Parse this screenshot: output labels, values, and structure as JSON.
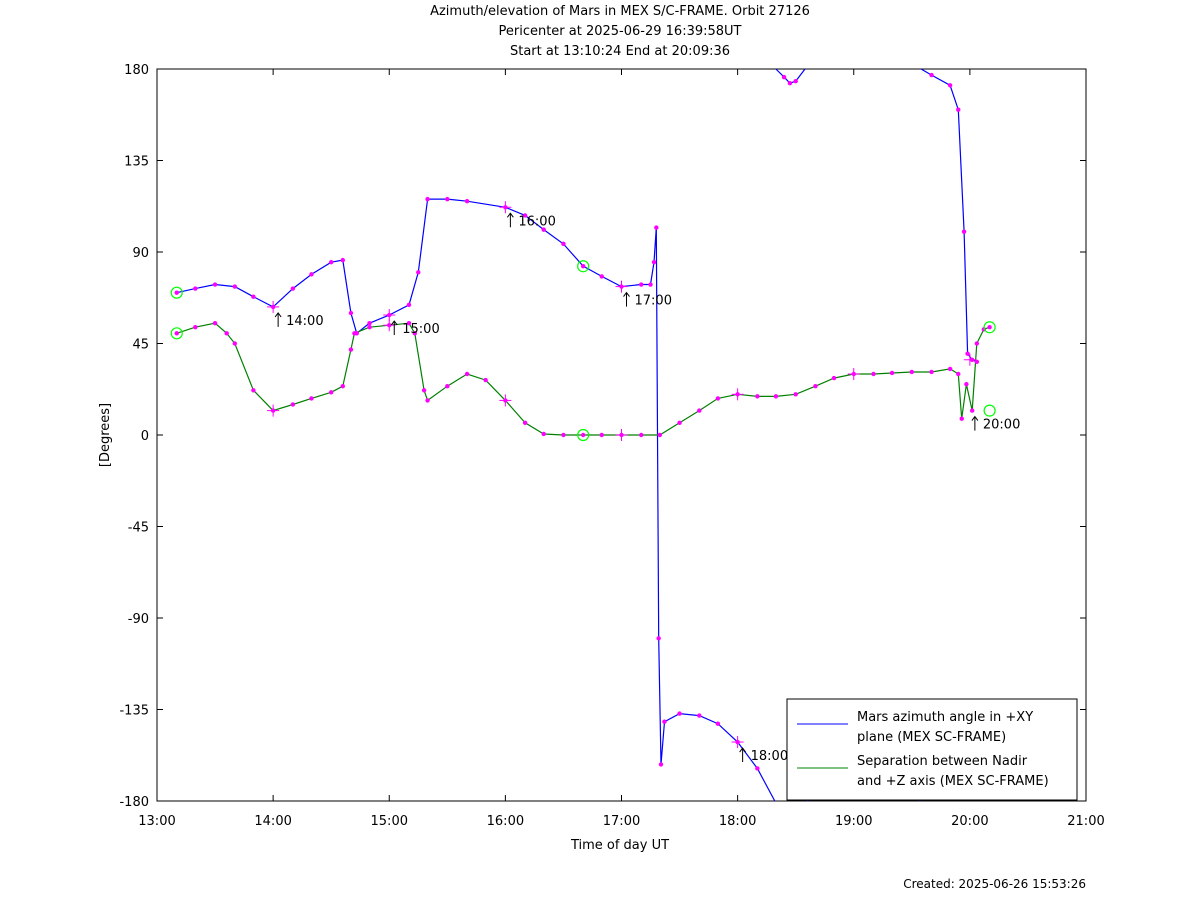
{
  "header": {
    "title_line1": "Azimuth/elevation of Mars in MEX S/C-FRAME.  Orbit 27126",
    "title_line2": "Pericenter at 2025-06-29 16:39:58UT",
    "title_line3": "Start at 13:10:24 End at 20:09:36"
  },
  "footer": {
    "created": "Created: 2025-06-26 15:53:26"
  },
  "colors": {
    "azimuth": "#0000ff",
    "separation": "#008000",
    "marker": "#ff00ff",
    "circle": "#00ff00"
  },
  "chart_data": {
    "type": "line",
    "xlabel": "Time of day UT",
    "ylabel": "[Degrees]",
    "xlim": [
      13.0,
      21.0
    ],
    "ylim": [
      -180,
      180
    ],
    "xticks": [
      "13:00",
      "14:00",
      "15:00",
      "16:00",
      "17:00",
      "18:00",
      "19:00",
      "20:00",
      "21:00"
    ],
    "yticks": [
      "180",
      "135",
      "90",
      "45",
      "0",
      "-45",
      "-90",
      "-135",
      "-180"
    ],
    "legend": {
      "placement": "bottom-right",
      "entries": [
        {
          "line1": "Mars azimuth angle in +XY",
          "line2": "plane (MEX SC-FRAME)"
        },
        {
          "line1": "Separation between Nadir",
          "line2": "and +Z axis (MEX SC-FRAME)"
        }
      ]
    },
    "series": [
      {
        "key": "azimuth",
        "points": [
          [
            13.17,
            70
          ],
          [
            13.33,
            72
          ],
          [
            13.5,
            74
          ],
          [
            13.67,
            73
          ],
          [
            13.83,
            68
          ],
          [
            14.0,
            63
          ],
          [
            14.17,
            72
          ],
          [
            14.33,
            79
          ],
          [
            14.5,
            85
          ],
          [
            14.6,
            86
          ],
          [
            14.67,
            60
          ],
          [
            14.72,
            50
          ],
          [
            14.83,
            55
          ],
          [
            15.0,
            59
          ],
          [
            15.17,
            64
          ],
          [
            15.25,
            80
          ],
          [
            15.33,
            116
          ],
          [
            15.5,
            116
          ],
          [
            15.67,
            115
          ],
          [
            16.0,
            112
          ],
          [
            16.17,
            108
          ],
          [
            16.33,
            101
          ],
          [
            16.5,
            94
          ],
          [
            16.67,
            83
          ],
          [
            16.83,
            78
          ],
          [
            17.0,
            73
          ],
          [
            17.17,
            74
          ],
          [
            17.25,
            74
          ],
          [
            17.28,
            85
          ],
          [
            17.3,
            102
          ],
          [
            17.32,
            -100
          ],
          [
            17.34,
            -162
          ],
          [
            17.37,
            -141
          ],
          [
            17.5,
            -137
          ],
          [
            17.67,
            -138
          ],
          [
            17.83,
            -142
          ],
          [
            18.0,
            -151
          ],
          [
            18.17,
            -164
          ],
          [
            18.32,
            -180
          ],
          null,
          [
            18.33,
            180
          ],
          [
            18.4,
            176
          ],
          [
            18.45,
            173
          ],
          [
            18.5,
            174
          ],
          [
            18.58,
            180
          ],
          null,
          [
            18.6,
            -180
          ],
          [
            18.72,
            -170
          ],
          [
            19.0,
            -165
          ],
          [
            19.3,
            -168
          ],
          [
            19.5,
            -174
          ],
          [
            19.56,
            -180
          ],
          null,
          [
            19.58,
            180
          ],
          [
            19.67,
            177
          ],
          [
            19.83,
            172
          ],
          [
            19.9,
            160
          ],
          [
            19.95,
            100
          ],
          [
            19.98,
            40
          ],
          [
            20.02,
            37
          ],
          [
            20.06,
            36
          ]
        ]
      },
      {
        "key": "separation",
        "points": [
          [
            13.17,
            50
          ],
          [
            13.33,
            53
          ],
          [
            13.5,
            55
          ],
          [
            13.6,
            50
          ],
          [
            13.67,
            45
          ],
          [
            13.83,
            22
          ],
          [
            14.0,
            12
          ],
          [
            14.17,
            15
          ],
          [
            14.33,
            18
          ],
          [
            14.5,
            21
          ],
          [
            14.6,
            24
          ],
          [
            14.67,
            42
          ],
          [
            14.7,
            50
          ],
          [
            14.83,
            53
          ],
          [
            15.0,
            54
          ],
          [
            15.17,
            55
          ],
          [
            15.22,
            50
          ],
          [
            15.3,
            22
          ],
          [
            15.33,
            17
          ],
          [
            15.5,
            24
          ],
          [
            15.67,
            30
          ],
          [
            15.83,
            27
          ],
          [
            16.0,
            17
          ],
          [
            16.17,
            6
          ],
          [
            16.33,
            0.5
          ],
          [
            16.5,
            0
          ],
          [
            16.67,
            0
          ],
          [
            16.83,
            0
          ],
          [
            17.0,
            0
          ],
          [
            17.17,
            0
          ],
          [
            17.33,
            0
          ],
          [
            17.5,
            6
          ],
          [
            17.67,
            12
          ],
          [
            17.83,
            18
          ],
          [
            18.0,
            20
          ],
          [
            18.17,
            19
          ],
          [
            18.33,
            19
          ],
          [
            18.5,
            20
          ],
          [
            18.67,
            24
          ],
          [
            18.83,
            28
          ],
          [
            19.0,
            30
          ],
          [
            19.17,
            30
          ],
          [
            19.33,
            30.5
          ],
          [
            19.5,
            31
          ],
          [
            19.67,
            31
          ],
          [
            19.83,
            32.5
          ],
          [
            19.9,
            30
          ],
          [
            19.93,
            8
          ],
          [
            19.97,
            25
          ],
          [
            20.02,
            12
          ],
          [
            20.06,
            45
          ],
          [
            20.12,
            52
          ],
          [
            20.17,
            53
          ]
        ]
      }
    ],
    "time_labels": [
      {
        "x": 14.0,
        "y": 63,
        "text": "14:00"
      },
      {
        "x": 15.0,
        "y": 59,
        "text": "15:00"
      },
      {
        "x": 16.0,
        "y": 112,
        "text": "16:00"
      },
      {
        "x": 17.0,
        "y": 73,
        "text": "17:00"
      },
      {
        "x": 18.0,
        "y": -151,
        "text": "18:00"
      },
      {
        "x": 20.0,
        "y": 12,
        "text": "20:00"
      }
    ],
    "hour_crosses": [
      [
        14.0,
        63
      ],
      [
        15.0,
        59
      ],
      [
        16.0,
        112
      ],
      [
        17.0,
        73
      ],
      [
        18.0,
        -151
      ],
      [
        20.0,
        37
      ],
      [
        14.0,
        12
      ],
      [
        15.0,
        54
      ],
      [
        16.0,
        17
      ],
      [
        17.0,
        0
      ],
      [
        18.0,
        20
      ],
      [
        19.0,
        30
      ]
    ],
    "circles": [
      [
        13.17,
        70
      ],
      [
        16.67,
        83
      ],
      [
        13.17,
        50
      ],
      [
        16.67,
        0
      ],
      [
        20.17,
        53
      ],
      [
        20.17,
        12
      ]
    ]
  }
}
